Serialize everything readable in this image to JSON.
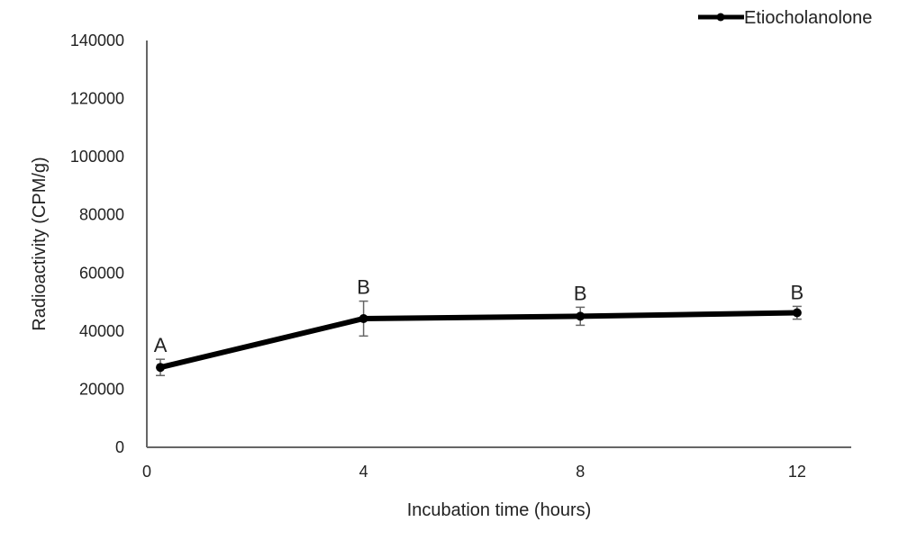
{
  "chart_data": {
    "type": "line",
    "title": "",
    "xlabel": "Incubation time (hours)",
    "ylabel": "Radioactivity (CPM/g)",
    "xlim": [
      0,
      13
    ],
    "ylim": [
      0,
      140000
    ],
    "xticks": [
      0,
      4,
      8,
      12
    ],
    "yticks": [
      0,
      20000,
      40000,
      60000,
      80000,
      100000,
      120000,
      140000
    ],
    "grid": false,
    "legend_placement": "top-right",
    "series": [
      {
        "name": "Etiocholanolone",
        "color": "#000000",
        "x": [
          0.25,
          4,
          8,
          12
        ],
        "y": [
          27500,
          44300,
          45100,
          46300
        ],
        "error": [
          2800,
          6000,
          3100,
          2200
        ],
        "labels": [
          "A",
          "B",
          "B",
          "B"
        ]
      }
    ]
  }
}
